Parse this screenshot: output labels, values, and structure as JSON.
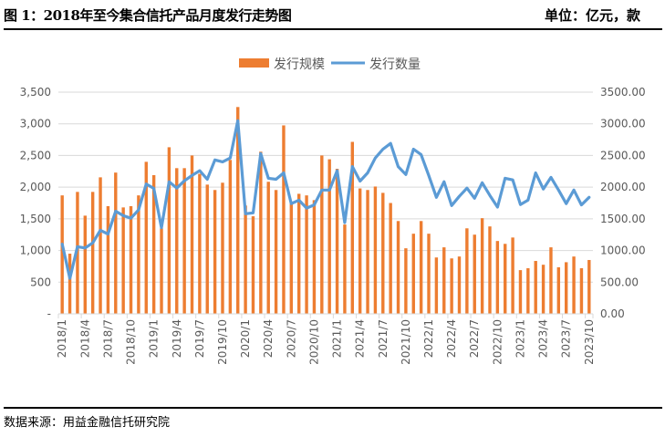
{
  "header": {
    "title": "图 1：2018年至今集合信托产品月度发行走势图",
    "unit": "单位：亿元，款"
  },
  "footer": {
    "source": "数据来源：用益金融信托研究院"
  },
  "colors": {
    "bar": "#ED7D31",
    "line": "#5B9BD5",
    "grid": "#D9D9D9",
    "tick_text": "#595959"
  },
  "chart_data": {
    "type": "bar+line",
    "title": "",
    "xlabel": "",
    "ylabel_left": "",
    "ylabel_right": "",
    "legend_position": "top-center",
    "grid": true,
    "left_axis": {
      "range": [
        0,
        3500
      ],
      "ticks": [
        0,
        500,
        1000,
        1500,
        2000,
        2500,
        3000,
        3500
      ],
      "tick_labels": [
        "-",
        "500",
        "1,000",
        "1,500",
        "2,000",
        "2,500",
        "3,000",
        "3,500"
      ]
    },
    "right_axis": {
      "range": [
        0,
        3500
      ],
      "ticks": [
        0,
        500,
        1000,
        1500,
        2000,
        2500,
        3000,
        3500
      ],
      "tick_labels": [
        "0.00",
        "500.00",
        "1000.00",
        "1500.00",
        "2000.00",
        "2500.00",
        "3000.00",
        "3500.00"
      ]
    },
    "categories": [
      "2018/1",
      "2018/2",
      "2018/3",
      "2018/4",
      "2018/5",
      "2018/6",
      "2018/7",
      "2018/8",
      "2018/9",
      "2018/10",
      "2018/11",
      "2018/12",
      "2019/1",
      "2019/2",
      "2019/3",
      "2019/4",
      "2019/5",
      "2019/6",
      "2019/7",
      "2019/8",
      "2019/9",
      "2019/10",
      "2019/11",
      "2019/12",
      "2020/1",
      "2020/2",
      "2020/3",
      "2020/4",
      "2020/5",
      "2020/6",
      "2020/7",
      "2020/8",
      "2020/9",
      "2020/10",
      "2020/11",
      "2020/12",
      "2021/1",
      "2021/2",
      "2021/3",
      "2021/4",
      "2021/5",
      "2021/6",
      "2021/7",
      "2021/8",
      "2021/9",
      "2021/10",
      "2021/11",
      "2021/12",
      "2022/1",
      "2022/2",
      "2022/3",
      "2022/4",
      "2022/5",
      "2022/6",
      "2022/7",
      "2022/8",
      "2022/9",
      "2022/10",
      "2022/11",
      "2022/12",
      "2023/1",
      "2023/2",
      "2023/3",
      "2023/4",
      "2023/5",
      "2023/6",
      "2023/7",
      "2023/8",
      "2023/9",
      "2023/10"
    ],
    "label_every": 3,
    "series": [
      {
        "name": "发行规模",
        "type": "bar",
        "axis": "left",
        "values": [
          1870,
          950,
          1925,
          1550,
          1925,
          2155,
          1700,
          2230,
          1680,
          1700,
          1870,
          2400,
          2190,
          1350,
          2630,
          2300,
          2300,
          2500,
          2210,
          2040,
          1955,
          2070,
          2430,
          3265,
          1710,
          1540,
          2560,
          2085,
          1955,
          2975,
          1740,
          1895,
          1870,
          1795,
          2500,
          2440,
          2290,
          1410,
          2715,
          1980,
          1955,
          2010,
          1910,
          1750,
          1465,
          1035,
          1265,
          1465,
          1265,
          890,
          1050,
          875,
          905,
          1350,
          1250,
          1510,
          1380,
          1150,
          1105,
          1205,
          690,
          720,
          835,
          775,
          1050,
          735,
          815,
          905,
          720,
          850
        ]
      },
      {
        "name": "发行数量",
        "type": "line",
        "axis": "right",
        "values": [
          1100,
          560,
          1060,
          1040,
          1120,
          1320,
          1260,
          1620,
          1550,
          1510,
          1640,
          2050,
          1980,
          1360,
          2085,
          1985,
          2100,
          2185,
          2260,
          2125,
          2430,
          2400,
          2460,
          3050,
          1580,
          1595,
          2530,
          2140,
          2125,
          2225,
          1740,
          1795,
          1670,
          1720,
          1955,
          1955,
          2260,
          1440,
          2325,
          2095,
          2225,
          2460,
          2600,
          2690,
          2325,
          2200,
          2600,
          2515,
          2185,
          1840,
          2085,
          1710,
          1855,
          1985,
          1825,
          2070,
          1870,
          1685,
          2140,
          2115,
          1725,
          1795,
          2225,
          1970,
          2155,
          1955,
          1740,
          1955,
          1720,
          1840
        ]
      }
    ]
  }
}
